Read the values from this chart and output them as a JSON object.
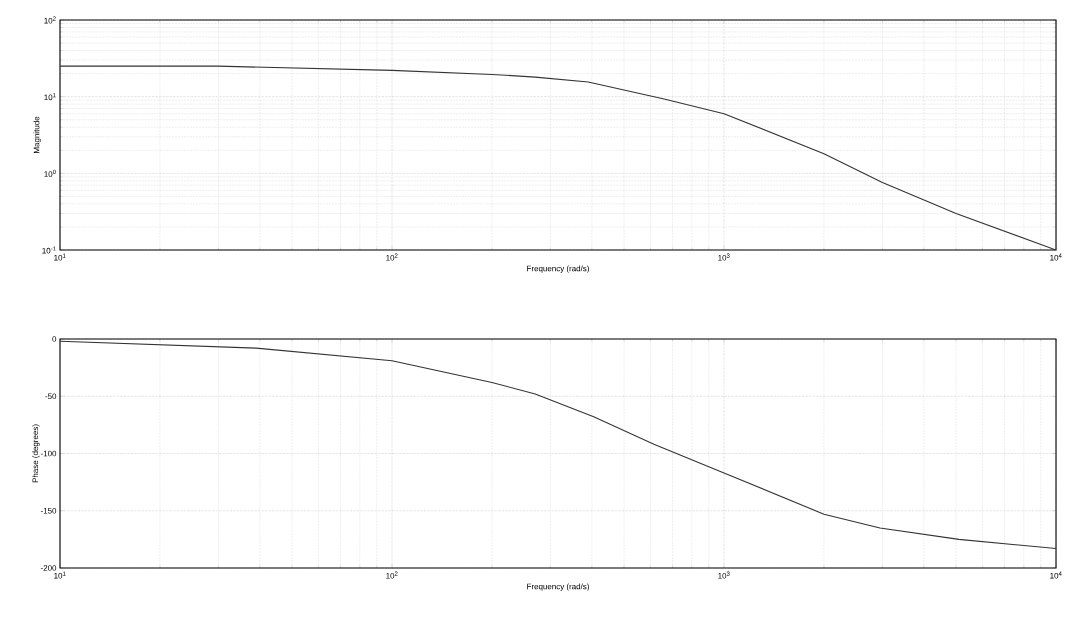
{
  "chart_data": [
    {
      "type": "line",
      "xlabel": "Frequency (rad/s)",
      "ylabel": "Magnitude",
      "log": "xy",
      "grid": true,
      "line_style": "solid",
      "x": [
        10,
        30,
        100,
        200,
        270,
        390,
        660,
        1000,
        2000,
        3000,
        5000,
        10000
      ],
      "series": [
        {
          "color": "#333333",
          "values": [
            25,
            25,
            22,
            19.5,
            18,
            15.5,
            9.3,
            6.0,
            1.8,
            0.76,
            0.3,
            0.1
          ]
        }
      ],
      "xlim": [
        10,
        10000
      ],
      "ylim": [
        0.1,
        100
      ],
      "xticks": [
        {
          "value": 10,
          "label": "10$^{1}$"
        },
        {
          "value": 100,
          "label": "10$^{2}$"
        },
        {
          "value": 1000,
          "label": "10$^{3}$"
        },
        {
          "value": 10000,
          "label": "10$^{4}$"
        }
      ],
      "yticks": [
        {
          "value": 0.1,
          "label": "10$^{-1}$"
        },
        {
          "value": 1,
          "label": "10$^{0}$"
        },
        {
          "value": 10,
          "label": "10$^{1}$"
        },
        {
          "value": 100,
          "label": "10$^{2}$"
        }
      ]
    },
    {
      "type": "line",
      "xlabel": "Frequency (rad/s)",
      "ylabel": "Phase (degrees)",
      "log": "x",
      "grid": true,
      "line_style": "solid",
      "x": [
        10,
        39,
        100,
        200,
        270,
        405,
        615,
        1000,
        2000,
        2950,
        5100,
        10000
      ],
      "series": [
        {
          "color": "#333333",
          "values": [
            -2,
            -8,
            -19,
            -38,
            -48,
            -68,
            -92,
            -117,
            -153,
            -165,
            -175,
            -183
          ]
        }
      ],
      "xlim": [
        10,
        10000
      ],
      "ylim": [
        -200,
        0
      ],
      "xticks": [
        {
          "value": 10,
          "label": "10$^{1}$"
        },
        {
          "value": 100,
          "label": "10$^{2}$"
        },
        {
          "value": 1000,
          "label": "10$^{3}$"
        },
        {
          "value": 10000,
          "label": "10$^{4}$"
        }
      ],
      "yticks": [
        -200,
        -150,
        -100,
        -50,
        0
      ]
    }
  ]
}
